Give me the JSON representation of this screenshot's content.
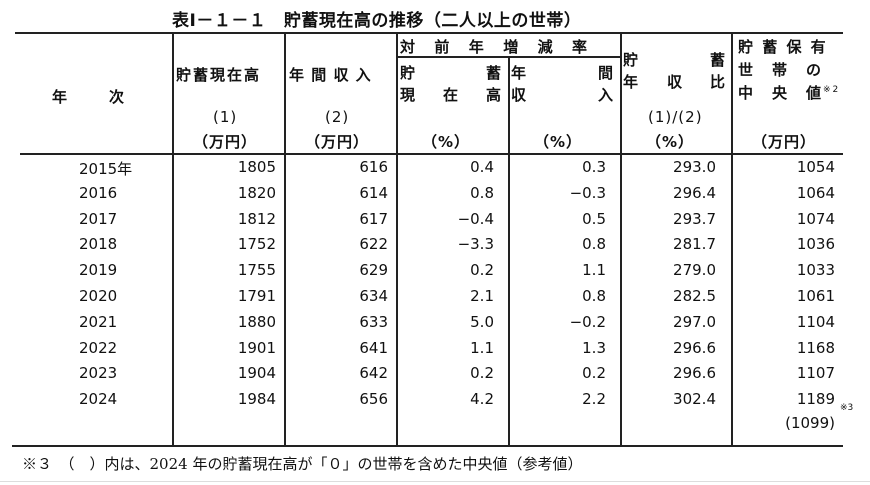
{
  "title": "表Ⅰ－１－１　貯蓄現在高の推移（二人以上の世帯）",
  "header": {
    "year_col": "年　　次",
    "savings": {
      "label": "貯蓄現在高",
      "index": "(1)",
      "unit": "（万円）"
    },
    "income": {
      "label": "年 間 収 入",
      "index": "(2)",
      "unit": "（万円）"
    },
    "yoy_group": "対　前　年　増　減　率",
    "yoy_savings": {
      "line1_a": "貯",
      "line1_b": "蓄",
      "line2_a": "現",
      "line2_b": "在",
      "line2_c": "高",
      "unit": "（%）"
    },
    "yoy_income": {
      "line1_a": "年",
      "line1_b": "間",
      "line2_a": "収",
      "line2_b": "入",
      "unit": "（%）"
    },
    "ratio": {
      "line1_a": "貯",
      "line1_b": "蓄",
      "line2_a": "年",
      "line2_b": "収",
      "line2_c": "比",
      "index": "(1)/(2)",
      "unit": "（%）"
    },
    "median": {
      "line1": "貯 蓄 保 有",
      "line2": "世　帯　の",
      "line3": "中　央　値",
      "note": "※2",
      "unit": "（万円）"
    }
  },
  "rows": [
    {
      "year": "2015年",
      "savings": "1805",
      "income": "616",
      "yoy_savings": "0.4",
      "yoy_income": "0.3",
      "ratio": "293.0",
      "median": "1054"
    },
    {
      "year": "2016",
      "savings": "1820",
      "income": "614",
      "yoy_savings": "0.8",
      "yoy_income": "−0.3",
      "ratio": "296.4",
      "median": "1064"
    },
    {
      "year": "2017",
      "savings": "1812",
      "income": "617",
      "yoy_savings": "−0.4",
      "yoy_income": "0.5",
      "ratio": "293.7",
      "median": "1074"
    },
    {
      "year": "2018",
      "savings": "1752",
      "income": "622",
      "yoy_savings": "−3.3",
      "yoy_income": "0.8",
      "ratio": "281.7",
      "median": "1036"
    },
    {
      "year": "2019",
      "savings": "1755",
      "income": "629",
      "yoy_savings": "0.2",
      "yoy_income": "1.1",
      "ratio": "279.0",
      "median": "1033"
    },
    {
      "year": "2020",
      "savings": "1791",
      "income": "634",
      "yoy_savings": "2.1",
      "yoy_income": "0.8",
      "ratio": "282.5",
      "median": "1061"
    },
    {
      "year": "2021",
      "savings": "1880",
      "income": "633",
      "yoy_savings": "5.0",
      "yoy_income": "−0.2",
      "ratio": "297.0",
      "median": "1104"
    },
    {
      "year": "2022",
      "savings": "1901",
      "income": "641",
      "yoy_savings": "1.1",
      "yoy_income": "1.3",
      "ratio": "296.6",
      "median": "1168"
    },
    {
      "year": "2023",
      "savings": "1904",
      "income": "642",
      "yoy_savings": "0.2",
      "yoy_income": "0.2",
      "ratio": "296.6",
      "median": "1107"
    },
    {
      "year": "2024",
      "savings": "1984",
      "income": "656",
      "yoy_savings": "4.2",
      "yoy_income": "2.2",
      "ratio": "302.4",
      "median": "1189"
    }
  ],
  "extra_2024": {
    "median_ref": "(1099)",
    "note": "※3"
  },
  "footnote": "※３　（　）内は、2024 年の貯蓄現在高が「０」の世帯を含めた中央値（参考値）"
}
